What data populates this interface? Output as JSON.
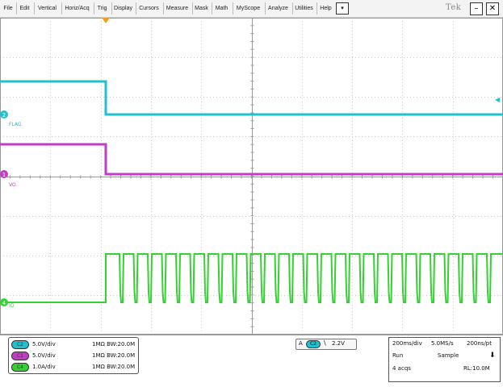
{
  "menu": {
    "items": [
      "File",
      "Edit",
      "Vertical",
      "Horiz/Acq",
      "Trig",
      "Display",
      "Cursors",
      "Measure",
      "Mask",
      "Math",
      "MyScope",
      "Analyze",
      "Utilities",
      "Help"
    ],
    "dropdown_glyph": "▾",
    "logo": "Tek",
    "minimize_glyph": "–",
    "close_glyph": "✕"
  },
  "channels": [
    {
      "marker": "2",
      "label": "FLAG",
      "color": "#1fc1cf"
    },
    {
      "marker": "1",
      "label": "VO",
      "color": "#c23cc5"
    },
    {
      "marker": "4",
      "label": "IO",
      "color": "#35d034"
    }
  ],
  "trigger_position_marker": "T",
  "trigger_level_marker": "◀",
  "channel_settings": [
    {
      "badge": "C2",
      "scale": "5.0V/div",
      "coupling": "1MΩ  BW:20.0M",
      "color": "#1fc1cf"
    },
    {
      "badge": "C1",
      "scale": "5.0V/div",
      "coupling": "1MΩ  BW:20.0M",
      "color": "#c23cc5"
    },
    {
      "badge": "C4",
      "scale": "1.0A/div",
      "coupling": "1MΩ  BW:20.0M",
      "color": "#35d034"
    }
  ],
  "trigger": {
    "mode": "A",
    "source": "C2",
    "slope": "\\",
    "level": "2.2V"
  },
  "acquisition": {
    "timebase": "200ms/div",
    "sample_rate": "5.0MS/s",
    "resolution": "200ns/pt",
    "state": "Run",
    "mode": "Sample",
    "acqs": "4 acqs",
    "record_length": "RL:10.0M",
    "single_glyph": "⬇"
  },
  "colors": {
    "grid": "#c8c8c8",
    "grid_center": "#9a9a9a",
    "menu_bg": "#f3f3f3"
  }
}
